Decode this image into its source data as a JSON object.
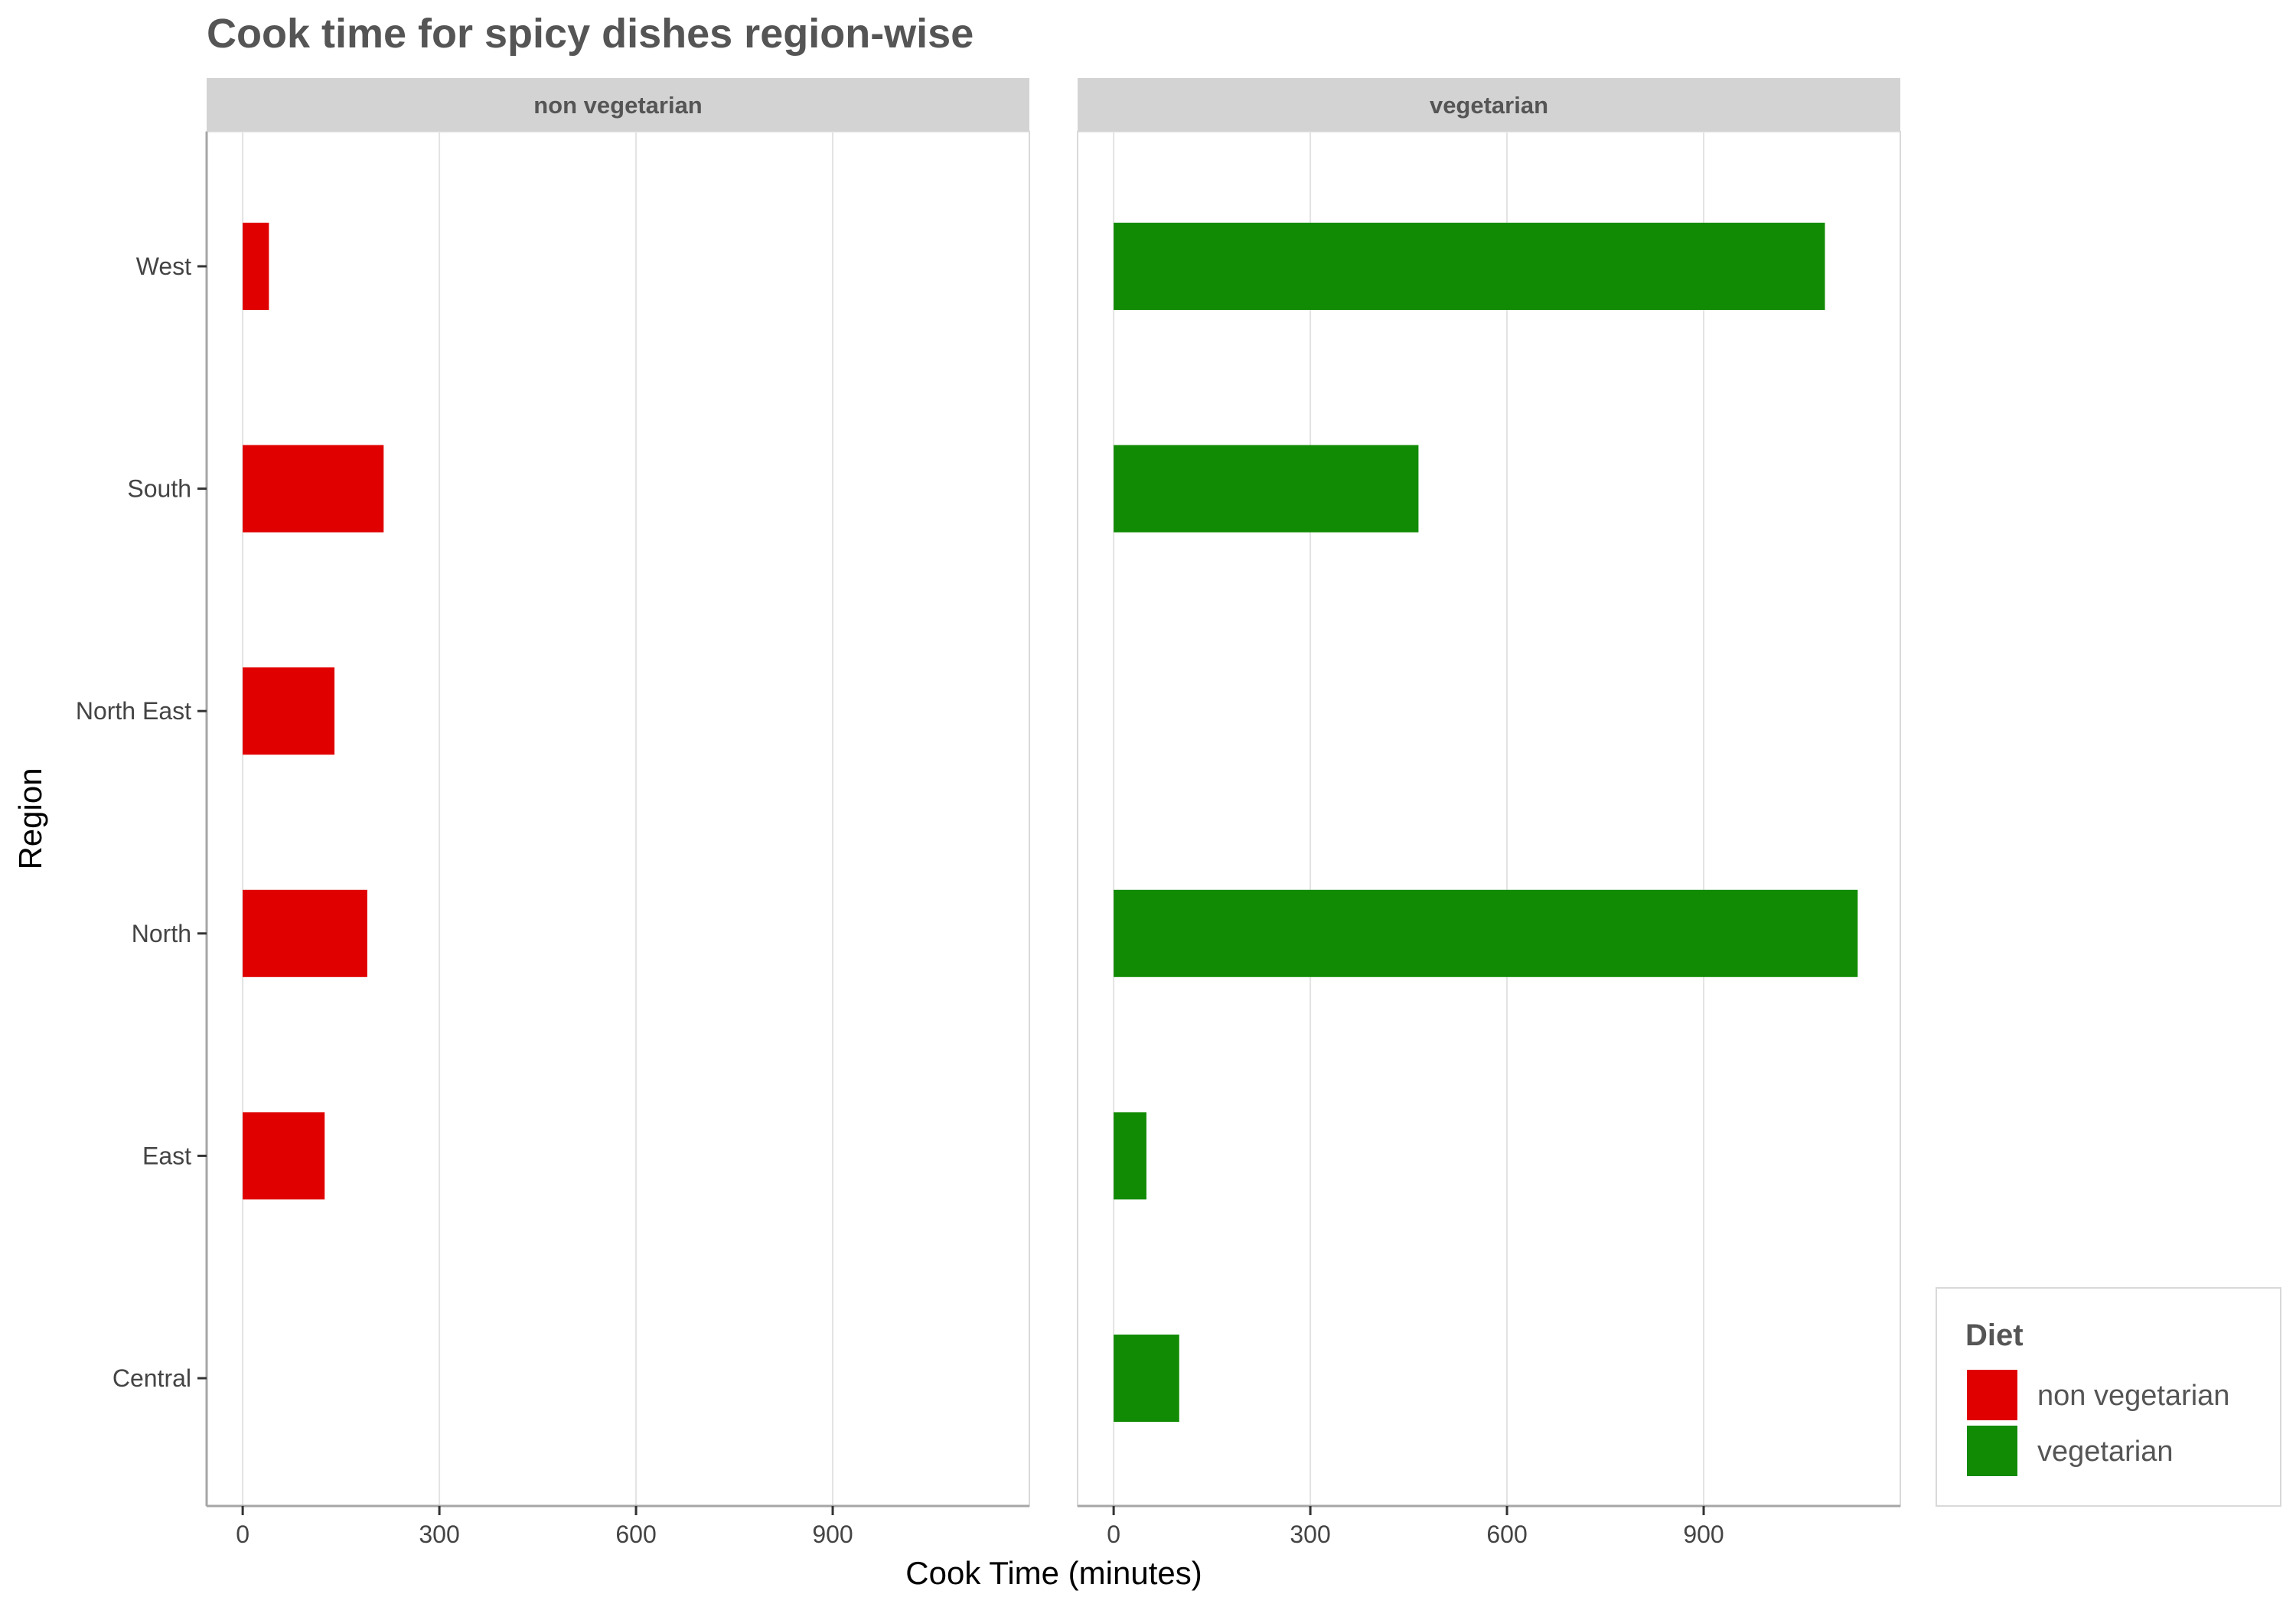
{
  "chart_data": {
    "type": "bar",
    "orientation": "horizontal",
    "title": "Cook time for spicy dishes region-wise",
    "xlabel": "Cook Time (minutes)",
    "ylabel": "Region",
    "categories": [
      "West",
      "South",
      "North East",
      "North",
      "East",
      "Central"
    ],
    "xlim": [
      -55,
      1200
    ],
    "xticks": [
      0,
      300,
      600,
      900
    ],
    "grid": "vertical-major",
    "facets": [
      {
        "label": "non vegetarian",
        "color": "#E00000",
        "values": {
          "West": 40,
          "South": 215,
          "North East": 140,
          "North": 190,
          "East": 125,
          "Central": 0
        }
      },
      {
        "label": "vegetarian",
        "color": "#128B04",
        "values": {
          "West": 1085,
          "South": 465,
          "North East": 0,
          "North": 1135,
          "East": 50,
          "Central": 100
        }
      }
    ],
    "legend": {
      "title": "Diet",
      "position": "bottom-right",
      "items": [
        {
          "label": "non vegetarian",
          "color": "#E00000"
        },
        {
          "label": "vegetarian",
          "color": "#128B04"
        }
      ]
    }
  }
}
